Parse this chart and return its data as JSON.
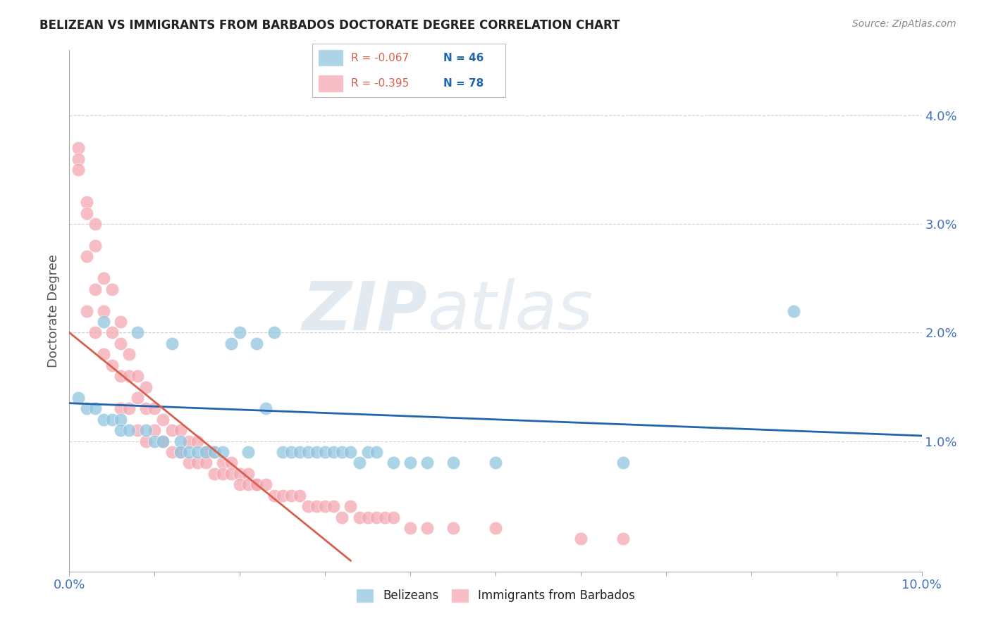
{
  "title": "BELIZEAN VS IMMIGRANTS FROM BARBADOS DOCTORATE DEGREE CORRELATION CHART",
  "source": "Source: ZipAtlas.com",
  "ylabel": "Doctorate Degree",
  "xlim": [
    0,
    0.1
  ],
  "ylim": [
    -0.002,
    0.046
  ],
  "xticks": [
    0.0,
    0.01,
    0.02,
    0.03,
    0.04,
    0.05,
    0.06,
    0.07,
    0.08,
    0.09,
    0.1
  ],
  "xtick_labels_show": {
    "0.00": "0.0%",
    "0.10": "10.0%"
  },
  "yticks_right": [
    0.01,
    0.02,
    0.03,
    0.04
  ],
  "ytick_labels_right": [
    "1.0%",
    "2.0%",
    "3.0%",
    "4.0%"
  ],
  "blue_color": "#92c5de",
  "pink_color": "#f4a7b2",
  "blue_line_color": "#2166ac",
  "pink_line_color": "#d6604d",
  "legend_blue_r": "R = -0.067",
  "legend_blue_n": "N = 46",
  "legend_pink_r": "R = -0.395",
  "legend_pink_n": "N = 78",
  "legend_label_blue": "Belizeans",
  "legend_label_pink": "Immigrants from Barbados",
  "watermark_zip": "ZIP",
  "watermark_atlas": "atlas",
  "title_color": "#222222",
  "tick_color": "#4472c4",
  "blue_scatter_x": [
    0.001,
    0.002,
    0.003,
    0.004,
    0.004,
    0.005,
    0.006,
    0.006,
    0.007,
    0.008,
    0.009,
    0.01,
    0.011,
    0.012,
    0.013,
    0.013,
    0.014,
    0.015,
    0.016,
    0.017,
    0.018,
    0.019,
    0.02,
    0.021,
    0.022,
    0.023,
    0.024,
    0.025,
    0.026,
    0.027,
    0.028,
    0.029,
    0.03,
    0.031,
    0.032,
    0.033,
    0.034,
    0.035,
    0.036,
    0.038,
    0.04,
    0.042,
    0.045,
    0.05,
    0.065,
    0.085
  ],
  "blue_scatter_y": [
    0.014,
    0.013,
    0.013,
    0.012,
    0.021,
    0.012,
    0.012,
    0.011,
    0.011,
    0.02,
    0.011,
    0.01,
    0.01,
    0.019,
    0.01,
    0.009,
    0.009,
    0.009,
    0.009,
    0.009,
    0.009,
    0.019,
    0.02,
    0.009,
    0.019,
    0.013,
    0.02,
    0.009,
    0.009,
    0.009,
    0.009,
    0.009,
    0.009,
    0.009,
    0.009,
    0.009,
    0.008,
    0.009,
    0.009,
    0.008,
    0.008,
    0.008,
    0.008,
    0.008,
    0.008,
    0.022
  ],
  "pink_scatter_x": [
    0.001,
    0.001,
    0.001,
    0.002,
    0.002,
    0.002,
    0.002,
    0.003,
    0.003,
    0.003,
    0.003,
    0.004,
    0.004,
    0.004,
    0.005,
    0.005,
    0.005,
    0.006,
    0.006,
    0.006,
    0.006,
    0.007,
    0.007,
    0.007,
    0.008,
    0.008,
    0.008,
    0.009,
    0.009,
    0.009,
    0.01,
    0.01,
    0.011,
    0.011,
    0.012,
    0.012,
    0.013,
    0.013,
    0.014,
    0.014,
    0.015,
    0.015,
    0.016,
    0.016,
    0.017,
    0.017,
    0.018,
    0.018,
    0.019,
    0.019,
    0.02,
    0.02,
    0.021,
    0.021,
    0.022,
    0.022,
    0.023,
    0.024,
    0.025,
    0.026,
    0.027,
    0.028,
    0.029,
    0.03,
    0.031,
    0.032,
    0.033,
    0.034,
    0.035,
    0.036,
    0.037,
    0.038,
    0.04,
    0.042,
    0.045,
    0.05,
    0.06,
    0.065
  ],
  "pink_scatter_y": [
    0.037,
    0.036,
    0.035,
    0.032,
    0.031,
    0.027,
    0.022,
    0.03,
    0.028,
    0.024,
    0.02,
    0.025,
    0.022,
    0.018,
    0.024,
    0.02,
    0.017,
    0.021,
    0.019,
    0.016,
    0.013,
    0.018,
    0.016,
    0.013,
    0.016,
    0.014,
    0.011,
    0.015,
    0.013,
    0.01,
    0.013,
    0.011,
    0.012,
    0.01,
    0.011,
    0.009,
    0.011,
    0.009,
    0.01,
    0.008,
    0.01,
    0.008,
    0.009,
    0.008,
    0.009,
    0.007,
    0.008,
    0.007,
    0.008,
    0.007,
    0.007,
    0.006,
    0.007,
    0.006,
    0.006,
    0.006,
    0.006,
    0.005,
    0.005,
    0.005,
    0.005,
    0.004,
    0.004,
    0.004,
    0.004,
    0.003,
    0.004,
    0.003,
    0.003,
    0.003,
    0.003,
    0.003,
    0.002,
    0.002,
    0.002,
    0.002,
    0.001,
    0.001
  ],
  "blue_line_x": [
    0.0,
    0.1
  ],
  "blue_line_y": [
    0.0135,
    0.0105
  ],
  "pink_line_x": [
    0.0,
    0.033
  ],
  "pink_line_y": [
    0.02,
    -0.001
  ],
  "background_color": "#ffffff",
  "grid_color": "#d0d0d0"
}
